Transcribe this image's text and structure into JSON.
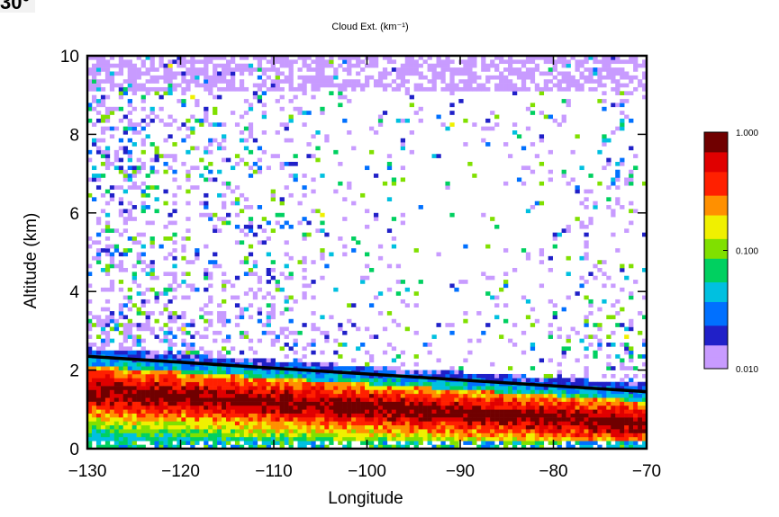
{
  "corner_label": "30°",
  "chart_data": {
    "type": "heatmap",
    "title": "Cloud Ext. (km⁻¹)",
    "xlabel": "Longitude",
    "ylabel": "Altitude (km)",
    "xlim": [
      -130,
      -70
    ],
    "ylim": [
      0,
      10
    ],
    "xticks": [
      -130,
      -120,
      -110,
      -100,
      -90,
      -80,
      -70
    ],
    "xtick_labels": [
      "−130",
      "−120",
      "−110",
      "−100",
      "−90",
      "−80",
      "−70"
    ],
    "yticks": [
      0,
      2,
      4,
      6,
      8,
      10
    ],
    "ytick_labels": [
      "0",
      "2",
      "4",
      "6",
      "8",
      "10"
    ],
    "colorbar": {
      "scale": "log",
      "range": [
        0.01,
        1.0
      ],
      "ticks": [
        0.01,
        0.1,
        1.0
      ],
      "tick_labels": [
        "0.010",
        "0.100",
        "1.000"
      ],
      "colors": [
        "#c89bff",
        "#2020c8",
        "#0070ff",
        "#00c0e0",
        "#00d060",
        "#80e000",
        "#f0f000",
        "#ff9000",
        "#ff2000",
        "#e00000",
        "#700000"
      ]
    },
    "boundary_line": {
      "points": [
        [
          -130,
          2.35
        ],
        [
          -70,
          1.45
        ]
      ],
      "color": "#000000"
    },
    "field_description_values": {
      "low_cloud_layer": {
        "top_km": [
          2.35,
          1.45
        ],
        "peak_km": [
          1.4,
          0.6
        ],
        "peak_ext": 1.0
      },
      "upper_cloud": {
        "range_km": [
          2.5,
          10
        ],
        "ext_range": [
          0.01,
          0.05
        ]
      }
    }
  }
}
